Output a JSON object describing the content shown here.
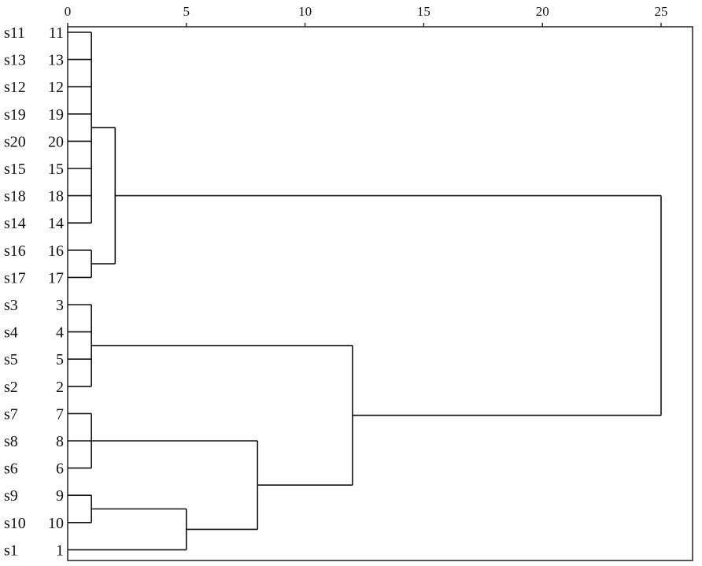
{
  "chart_data": {
    "type": "dendrogram",
    "x_axis": {
      "range": [
        0,
        25
      ],
      "ticks": [
        0,
        5,
        10,
        15,
        20,
        25
      ],
      "tick_labels": [
        "0",
        "5",
        "10",
        "15",
        "20",
        "25"
      ],
      "position": "top"
    },
    "leaf_order": [
      {
        "sample": "s11",
        "case": "11"
      },
      {
        "sample": "s13",
        "case": "13"
      },
      {
        "sample": "s12",
        "case": "12"
      },
      {
        "sample": "s19",
        "case": "19"
      },
      {
        "sample": "s20",
        "case": "20"
      },
      {
        "sample": "s15",
        "case": "15"
      },
      {
        "sample": "s18",
        "case": "18"
      },
      {
        "sample": "s14",
        "case": "14"
      },
      {
        "sample": "s16",
        "case": "16"
      },
      {
        "sample": "s17",
        "case": "17"
      },
      {
        "sample": "s3",
        "case": "3"
      },
      {
        "sample": "s4",
        "case": "4"
      },
      {
        "sample": "s5",
        "case": "5"
      },
      {
        "sample": "s2",
        "case": "2"
      },
      {
        "sample": "s7",
        "case": "7"
      },
      {
        "sample": "s8",
        "case": "8"
      },
      {
        "sample": "s6",
        "case": "6"
      },
      {
        "sample": "s9",
        "case": "9"
      },
      {
        "sample": "s10",
        "case": "10"
      },
      {
        "sample": "s1",
        "case": "1"
      }
    ],
    "merges": [
      {
        "name": "A",
        "children": [
          "L0",
          "L1",
          "L2",
          "L3",
          "L4",
          "L5",
          "L6",
          "L7"
        ],
        "height": 1
      },
      {
        "name": "B",
        "children": [
          "L8",
          "L9"
        ],
        "height": 1
      },
      {
        "name": "C",
        "children": [
          "A",
          "B"
        ],
        "height": 2
      },
      {
        "name": "D",
        "children": [
          "L10",
          "L11",
          "L12",
          "L13"
        ],
        "height": 1
      },
      {
        "name": "E",
        "children": [
          "L14",
          "L15",
          "L16"
        ],
        "height": 1
      },
      {
        "name": "F",
        "children": [
          "L17",
          "L18"
        ],
        "height": 1
      },
      {
        "name": "G",
        "children": [
          "F",
          "L19"
        ],
        "height": 5
      },
      {
        "name": "H",
        "children": [
          "E",
          "G"
        ],
        "height": 8
      },
      {
        "name": "I",
        "children": [
          "D",
          "H"
        ],
        "height": 12
      },
      {
        "name": "J",
        "children": [
          "C",
          "I"
        ],
        "height": 25
      }
    ]
  }
}
